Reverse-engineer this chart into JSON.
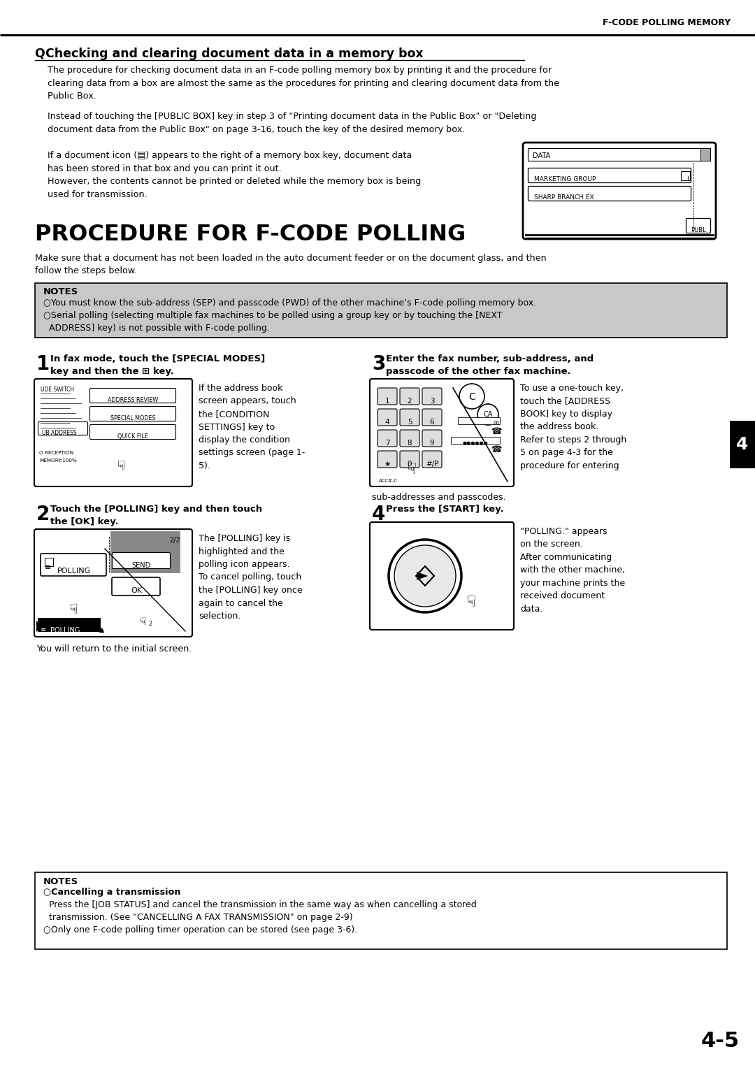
{
  "bg_color": "#ffffff",
  "header_text": "F-CODE POLLING MEMORY",
  "page_number": "4-5",
  "chapter_tab": "4",
  "section_q_title": "Q Checking and clearing document data in a memory box",
  "main_title": "PROCEDURE FOR F-CODE POLLING",
  "notes_bg": "#cccccc"
}
